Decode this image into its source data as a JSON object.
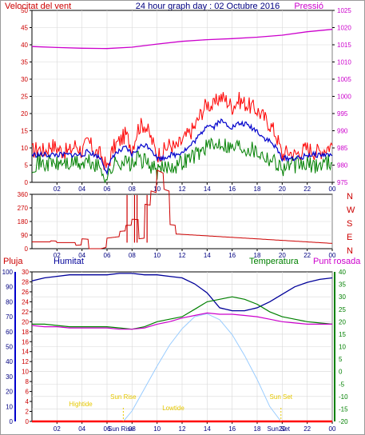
{
  "header": {
    "wind_label": "Velocitat del vent",
    "title": "24 hour graph day : 02 Octubre 2016",
    "pressure_label": "Pressió"
  },
  "colors": {
    "wind": "#ff0000",
    "gust": "#ff0000",
    "wind_avg": "#0000cc",
    "green": "#008000",
    "pressure": "#cc00cc",
    "rain": "#ff0000",
    "humidity": "#000099",
    "temperature": "#008000",
    "dew": "#cc00cc",
    "sun": "#99ccff",
    "annot": "#e6c800",
    "axis_dark": "#000080"
  },
  "compass_labels": [
    "N",
    "W",
    "S",
    "E",
    "N"
  ],
  "bottom_header": {
    "rain_label": "Pluja",
    "humidity_label": "Humitat",
    "temp_label": "Temperatura",
    "dew_label": "Punt rosada"
  },
  "annotations": {
    "hightide": "Hightide",
    "sunrise": "Sun Rise",
    "lowtide": "Lowtide",
    "sunset": "Sun Set",
    "sunrise_axis": "Sun Rise",
    "sunset_axis": "Sun Set"
  },
  "chart_data": [
    {
      "type": "line",
      "name": "wind",
      "x_ticks": [
        "02",
        "04",
        "06",
        "08",
        "10",
        "12",
        "14",
        "16",
        "18",
        "20",
        "22",
        "00"
      ],
      "x_range_hours": [
        0,
        24
      ],
      "y_left_ticks": [
        0,
        5,
        10,
        15,
        20,
        25,
        30,
        35,
        40,
        45,
        50
      ],
      "y_left_range": [
        0,
        50
      ],
      "y_right_ticks": [
        975,
        980,
        985,
        990,
        995,
        1000,
        1005,
        1010,
        1015,
        1020,
        1025
      ],
      "y_right_range": [
        975,
        1025
      ],
      "series": [
        {
          "role": "gust",
          "x": [
            0,
            0.5,
            1,
            1.5,
            2,
            2.5,
            3,
            3.5,
            4,
            4.5,
            5,
            5.5,
            6,
            6.5,
            7,
            7.5,
            8,
            8.5,
            9,
            9.5,
            10,
            10.5,
            11,
            11.5,
            12,
            12.5,
            13,
            13.5,
            14,
            14.5,
            15,
            15.5,
            16,
            16.5,
            17,
            17.5,
            18,
            18.5,
            19,
            19.5,
            20,
            20.5,
            21,
            21.5,
            22,
            22.5,
            23,
            23.5,
            24
          ],
          "y": [
            9,
            10,
            9,
            11,
            10,
            9,
            9,
            11,
            9,
            12,
            9,
            8,
            4,
            10,
            12,
            14,
            10,
            16,
            17,
            13,
            8,
            9,
            11,
            10,
            12,
            14,
            16,
            20,
            23,
            22,
            25,
            24,
            22,
            24,
            23,
            22,
            21,
            19,
            17,
            14,
            8,
            9,
            8,
            9,
            10,
            9,
            9,
            10,
            11
          ]
        },
        {
          "role": "avg",
          "x": [
            0,
            0.5,
            1,
            1.5,
            2,
            2.5,
            3,
            3.5,
            4,
            4.5,
            5,
            5.5,
            6,
            6.5,
            7,
            7.5,
            8,
            8.5,
            9,
            9.5,
            10,
            10.5,
            11,
            11.5,
            12,
            12.5,
            13,
            13.5,
            14,
            14.5,
            15,
            15.5,
            16,
            16.5,
            17,
            17.5,
            18,
            18.5,
            19,
            19.5,
            20,
            20.5,
            21,
            21.5,
            22,
            22.5,
            23,
            23.5,
            24
          ],
          "y": [
            8,
            8,
            8,
            8,
            8,
            8,
            8,
            8,
            8,
            9,
            8,
            7,
            3,
            8,
            9,
            10,
            8,
            10,
            11,
            10,
            7,
            7,
            8,
            8,
            9,
            10,
            12,
            14,
            17,
            16,
            18,
            17,
            16,
            17,
            17,
            16,
            15,
            13,
            12,
            10,
            7,
            7,
            7,
            7,
            8,
            8,
            8,
            8,
            8
          ]
        },
        {
          "role": "low",
          "x": [
            0,
            0.5,
            1,
            1.5,
            2,
            2.5,
            3,
            3.5,
            4,
            4.5,
            5,
            5.5,
            6,
            6.5,
            7,
            7.5,
            8,
            8.5,
            9,
            9.5,
            10,
            10.5,
            11,
            11.5,
            12,
            12.5,
            13,
            13.5,
            14,
            14.5,
            15,
            15.5,
            16,
            16.5,
            17,
            17.5,
            18,
            18.5,
            19,
            19.5,
            20,
            20.5,
            21,
            21.5,
            22,
            22.5,
            23,
            23.5,
            24
          ],
          "y": [
            5,
            6,
            5,
            6,
            5,
            6,
            5,
            6,
            5,
            6,
            5,
            4,
            1,
            5,
            6,
            6,
            5,
            7,
            6,
            5,
            3,
            4,
            5,
            5,
            6,
            7,
            8,
            9,
            11,
            10,
            12,
            11,
            10,
            11,
            10,
            10,
            9,
            8,
            7,
            6,
            4,
            5,
            5,
            5,
            5,
            5,
            5,
            6,
            6
          ]
        },
        {
          "role": "pressure",
          "x": [
            0,
            2,
            4,
            6,
            8,
            10,
            12,
            14,
            16,
            18,
            20,
            22,
            24
          ],
          "y": [
            1014.5,
            1014.2,
            1014.0,
            1013.9,
            1014.3,
            1015.2,
            1016.0,
            1016.5,
            1016.8,
            1017.2,
            1017.8,
            1018.8,
            1019.5
          ]
        }
      ]
    },
    {
      "type": "scatter",
      "name": "wind_direction",
      "x_ticks": [
        "02",
        "04",
        "06",
        "08",
        "10",
        "12",
        "14",
        "16",
        "18",
        "20",
        "22",
        "00"
      ],
      "y_ticks": [
        0,
        90,
        180,
        270,
        360
      ],
      "y_range": [
        0,
        360
      ],
      "x": [
        0,
        1,
        2,
        3,
        4,
        5,
        6,
        7,
        8,
        9,
        10,
        11,
        12,
        13,
        14,
        15,
        16,
        17,
        18,
        19,
        20,
        21,
        22,
        23,
        24
      ],
      "y": [
        45,
        45,
        45,
        45,
        40,
        40,
        40,
        40,
        45,
        40,
        90,
        110,
        130,
        140,
        150,
        155,
        155,
        150,
        160,
        145,
        120,
        80,
        50,
        40,
        35
      ]
    },
    {
      "type": "line",
      "name": "rain_humidity_temperature",
      "x_ticks": [
        "02",
        "04",
        "06",
        "08",
        "10",
        "12",
        "14",
        "16",
        "18",
        "20",
        "22",
        "00"
      ],
      "y_humidity_ticks": [
        0,
        10,
        20,
        30,
        40,
        50,
        60,
        70,
        80,
        90,
        100
      ],
      "y_humidity_range": [
        0,
        100
      ],
      "y_rain_ticks": [
        0,
        2,
        4,
        6,
        8,
        10,
        12,
        14,
        16,
        18,
        20,
        22,
        24,
        26,
        28,
        30
      ],
      "y_rain_range": [
        0,
        30
      ],
      "y_temp_ticks": [
        -20,
        -15,
        -10,
        -5,
        0,
        5,
        10,
        15,
        20,
        25,
        30,
        35,
        40
      ],
      "y_temp_range": [
        -20,
        40
      ],
      "series": [
        {
          "role": "humidity",
          "x": [
            0,
            1,
            2,
            3,
            4,
            5,
            6,
            7,
            8,
            9,
            10,
            11,
            12,
            13,
            14,
            15,
            16,
            17,
            18,
            19,
            20,
            21,
            22,
            23,
            24
          ],
          "y": [
            94,
            96,
            97,
            98,
            98,
            98,
            98,
            99,
            99,
            98,
            98,
            97,
            96,
            92,
            86,
            76,
            74,
            74,
            76,
            80,
            85,
            90,
            93,
            95,
            96
          ]
        },
        {
          "role": "temperature",
          "x": [
            0,
            1,
            2,
            3,
            4,
            5,
            6,
            7,
            8,
            9,
            10,
            11,
            12,
            13,
            14,
            15,
            16,
            17,
            18,
            19,
            20,
            21,
            22,
            23,
            24
          ],
          "y": [
            19,
            19,
            18.5,
            18,
            18,
            18,
            18,
            17.5,
            17,
            18,
            20,
            21,
            22,
            25,
            28,
            29,
            30,
            29,
            27,
            24,
            22,
            21,
            20,
            19.5,
            19
          ]
        },
        {
          "role": "dew",
          "x": [
            0,
            1,
            2,
            3,
            4,
            5,
            6,
            7,
            8,
            9,
            10,
            11,
            12,
            13,
            14,
            15,
            16,
            17,
            18,
            19,
            20,
            21,
            22,
            23,
            24
          ],
          "y": [
            18.5,
            18,
            18,
            17.5,
            17.5,
            17.5,
            17.5,
            17,
            17,
            17.5,
            19,
            20,
            21.5,
            22.5,
            23.5,
            23,
            23,
            22.5,
            22,
            21,
            20,
            19.5,
            19,
            19,
            19
          ]
        },
        {
          "role": "rain",
          "x": [
            0,
            24
          ],
          "y": [
            0,
            0
          ]
        },
        {
          "role": "sun",
          "x": [
            7.3,
            8,
            9,
            10,
            11,
            12,
            13,
            14,
            15,
            16,
            17,
            18,
            19,
            19.9
          ],
          "y": [
            0,
            7,
            22,
            37,
            51,
            62,
            70,
            72,
            68,
            58,
            44,
            28,
            10,
            0
          ]
        }
      ]
    }
  ]
}
